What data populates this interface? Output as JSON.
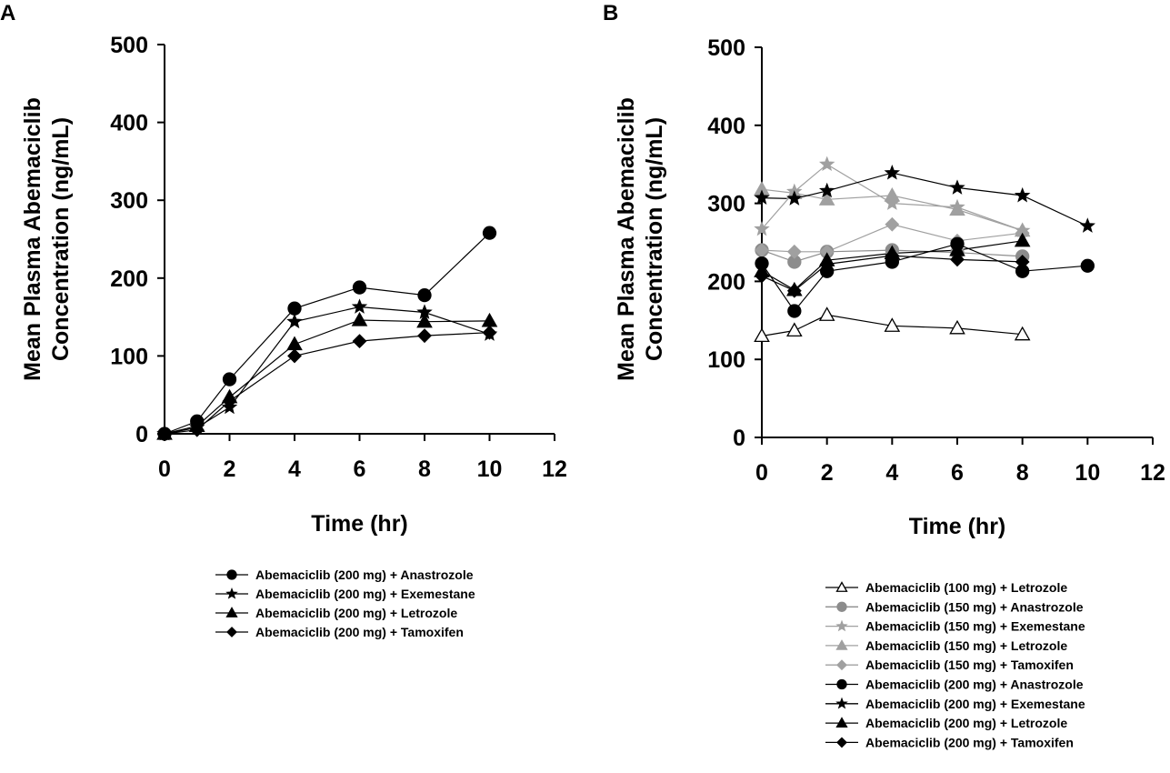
{
  "chart_data": [
    {
      "panel": "A",
      "type": "line",
      "xlabel": "Time (hr)",
      "ylabel": [
        "Mean Plasma Abemaciclib",
        "Concentration (ng/mL)"
      ],
      "xlim": [
        0,
        12
      ],
      "ylim": [
        0,
        500
      ],
      "xticks": [
        0,
        2,
        4,
        6,
        8,
        10,
        12
      ],
      "yticks": [
        0,
        100,
        200,
        300,
        400,
        500
      ],
      "series": [
        {
          "name": "Abemaciclib (200 mg) + Anastrozole",
          "marker": "circle",
          "color": "#000000",
          "filled": true,
          "x": [
            0,
            1,
            2,
            4,
            6,
            8,
            10
          ],
          "y": [
            0,
            16,
            70,
            161,
            188,
            178,
            258
          ]
        },
        {
          "name": "Abemaciclib (200 mg) + Exemestane",
          "marker": "star",
          "color": "#000000",
          "filled": true,
          "x": [
            0,
            1,
            2,
            4,
            6,
            8,
            10
          ],
          "y": [
            0,
            8,
            34,
            144,
            163,
            156,
            128
          ]
        },
        {
          "name": "Abemaciclib (200 mg) + Letrozole",
          "marker": "triangle",
          "color": "#000000",
          "filled": true,
          "x": [
            0,
            1,
            2,
            4,
            6,
            8,
            10
          ],
          "y": [
            0,
            10,
            47,
            115,
            146,
            144,
            145
          ]
        },
        {
          "name": "Abemaciclib (200 mg) + Tamoxifen",
          "marker": "diamond",
          "color": "#000000",
          "filled": true,
          "x": [
            0,
            1,
            2,
            4,
            6,
            8,
            10
          ],
          "y": [
            0,
            5,
            42,
            100,
            119,
            126,
            130
          ]
        }
      ]
    },
    {
      "panel": "B",
      "type": "line",
      "xlabel": "Time (hr)",
      "ylabel": [
        "Mean Plasma Abemaciclib",
        "Concentration (ng/mL)"
      ],
      "xlim": [
        0,
        12
      ],
      "ylim": [
        0,
        500
      ],
      "xticks": [
        0,
        2,
        4,
        6,
        8,
        10,
        12
      ],
      "yticks": [
        0,
        100,
        200,
        300,
        400,
        500
      ],
      "series": [
        {
          "name": "Abemaciclib (100 mg) + Letrozole",
          "marker": "triangle",
          "color": "#000000",
          "filled": false,
          "x": [
            0,
            1,
            2,
            4,
            6,
            8
          ],
          "y": [
            130,
            137,
            157,
            143,
            140,
            132
          ]
        },
        {
          "name": "Abemaciclib (150 mg) + Anastrozole",
          "marker": "circle",
          "color": "#8c8c8c",
          "filled": true,
          "x": [
            0,
            1,
            2,
            4,
            6,
            8
          ],
          "y": [
            240,
            225,
            238,
            240,
            237,
            232
          ]
        },
        {
          "name": "Abemaciclib (150 mg) + Exemestane",
          "marker": "star",
          "color": "#a0a0a0",
          "filled": true,
          "x": [
            0,
            1,
            2,
            4,
            6,
            8
          ],
          "y": [
            267,
            315,
            350,
            300,
            295,
            265
          ]
        },
        {
          "name": "Abemaciclib (150 mg) + Letrozole",
          "marker": "triangle",
          "color": "#a0a0a0",
          "filled": true,
          "x": [
            0,
            1,
            2,
            4,
            6,
            8
          ],
          "y": [
            318,
            313,
            305,
            310,
            292,
            265
          ]
        },
        {
          "name": "Abemaciclib (150 mg) + Tamoxifen",
          "marker": "diamond",
          "color": "#a0a0a0",
          "filled": true,
          "x": [
            0,
            1,
            2,
            4,
            6,
            8
          ],
          "y": [
            240,
            238,
            238,
            273,
            252,
            262
          ]
        },
        {
          "name": "Abemaciclib (200 mg) + Anastrozole",
          "marker": "circle",
          "color": "#000000",
          "filled": true,
          "x": [
            0,
            1,
            2,
            4,
            6,
            8,
            10
          ],
          "y": [
            223,
            162,
            213,
            225,
            248,
            213,
            220
          ]
        },
        {
          "name": "Abemaciclib (200 mg) + Exemestane",
          "marker": "star",
          "color": "#000000",
          "filled": true,
          "x": [
            0,
            1,
            2,
            4,
            6,
            8,
            10
          ],
          "y": [
            307,
            306,
            316,
            339,
            320,
            310,
            271
          ]
        },
        {
          "name": "Abemaciclib (200 mg) + Letrozole",
          "marker": "triangle",
          "color": "#000000",
          "filled": true,
          "x": [
            0,
            1,
            2,
            4,
            6,
            8
          ],
          "y": [
            213,
            189,
            227,
            236,
            240,
            252
          ]
        },
        {
          "name": "Abemaciclib (200 mg) + Tamoxifen",
          "marker": "diamond",
          "color": "#000000",
          "filled": true,
          "x": [
            0,
            1,
            2,
            4,
            6,
            8
          ],
          "y": [
            207,
            188,
            222,
            233,
            228,
            225
          ]
        }
      ]
    }
  ]
}
